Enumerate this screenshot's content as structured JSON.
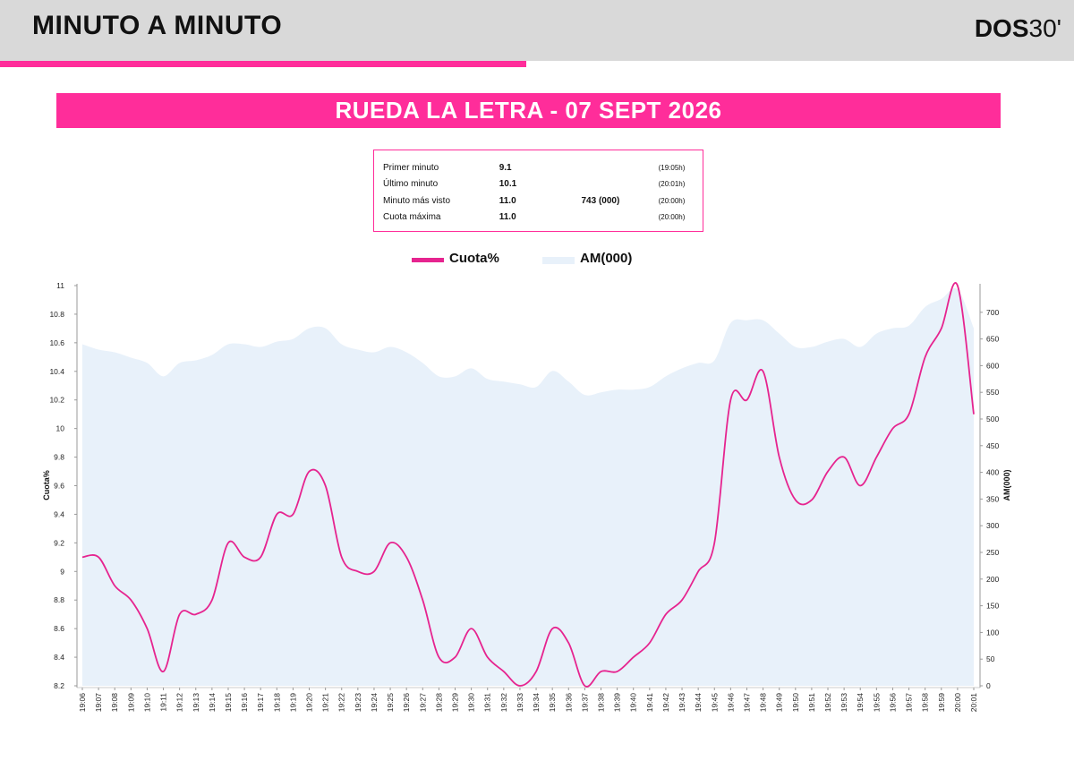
{
  "header": {
    "title": "MINUTO A MINUTO",
    "logo_bold": "DOS",
    "logo_light": "30'"
  },
  "banner": {
    "title": "RUEDA LA LETRA - 07 SEPT 2026"
  },
  "stats": [
    {
      "label": "Primer minuto",
      "value": "9.1",
      "audience": "",
      "time": "(19:05h)"
    },
    {
      "label": "Último minuto",
      "value": "10.1",
      "audience": "",
      "time": "(20:01h)"
    },
    {
      "label": "Minuto más visto",
      "value": "11.0",
      "audience": "743 (000)",
      "time": "(20:00h)"
    },
    {
      "label": "Cuota máxima",
      "value": "11.0",
      "audience": "",
      "time": "(20:00h)"
    }
  ],
  "colors": {
    "accent": "#ff2d9a",
    "line": "#e6248f",
    "area": "#e8f1fa",
    "header_bg": "#d9d9d9"
  },
  "chart_data": {
    "type": "line",
    "categories": [
      "19:06",
      "19:07",
      "19:08",
      "19:09",
      "19:10",
      "19:11",
      "19:12",
      "19:13",
      "19:14",
      "19:15",
      "19:16",
      "19:17",
      "19:18",
      "19:19",
      "19:20",
      "19:21",
      "19:22",
      "19:23",
      "19:24",
      "19:25",
      "19:26",
      "19:27",
      "19:28",
      "19:29",
      "19:30",
      "19:31",
      "19:32",
      "19:33",
      "19:34",
      "19:35",
      "19:36",
      "19:37",
      "19:38",
      "19:39",
      "19:40",
      "19:41",
      "19:42",
      "19:43",
      "19:44",
      "19:45",
      "19:46",
      "19:47",
      "19:48",
      "19:49",
      "19:50",
      "19:51",
      "19:52",
      "19:53",
      "19:54",
      "19:55",
      "19:56",
      "19:57",
      "19:58",
      "19:59",
      "20:00",
      "20:01"
    ],
    "ylabel": "Cuota%",
    "y2label": "AM(000)",
    "ylim": [
      8.2,
      11
    ],
    "y2lim": [
      0,
      750
    ],
    "yticks": [
      "8.2",
      "8.4",
      "8.6",
      "8.8",
      "9",
      "9.2",
      "9.4",
      "9.6",
      "9.8",
      "10",
      "10.2",
      "10.4",
      "10.6",
      "10.8",
      "11"
    ],
    "y2ticks": [
      "0",
      "50",
      "100",
      "150",
      "200",
      "250",
      "300",
      "350",
      "400",
      "450",
      "500",
      "550",
      "600",
      "650",
      "700"
    ],
    "legend_position": "top-center",
    "series": [
      {
        "name": "Cuota%",
        "axis": "left",
        "kind": "line",
        "values": [
          9.1,
          9.1,
          8.9,
          8.8,
          8.6,
          8.3,
          8.7,
          8.7,
          8.8,
          9.2,
          9.1,
          9.1,
          9.4,
          9.4,
          9.7,
          9.6,
          9.1,
          9.0,
          9.0,
          9.2,
          9.1,
          8.8,
          8.4,
          8.4,
          8.6,
          8.4,
          8.3,
          8.2,
          8.3,
          8.6,
          8.5,
          8.2,
          8.3,
          8.3,
          8.4,
          8.5,
          8.7,
          8.8,
          9.0,
          9.2,
          10.2,
          10.2,
          10.4,
          9.8,
          9.5,
          9.5,
          9.7,
          9.8,
          9.6,
          9.8,
          10.0,
          10.1,
          10.5,
          10.7,
          11.0,
          10.1
        ]
      },
      {
        "name": "AM(000)",
        "axis": "right",
        "kind": "area",
        "values": [
          640,
          630,
          625,
          615,
          605,
          580,
          605,
          610,
          620,
          640,
          640,
          635,
          645,
          650,
          670,
          670,
          640,
          630,
          625,
          635,
          625,
          605,
          580,
          580,
          595,
          575,
          570,
          565,
          560,
          590,
          570,
          545,
          550,
          555,
          555,
          560,
          580,
          595,
          605,
          610,
          680,
          685,
          685,
          660,
          635,
          635,
          645,
          650,
          635,
          660,
          670,
          675,
          710,
          725,
          743,
          670
        ]
      }
    ]
  }
}
